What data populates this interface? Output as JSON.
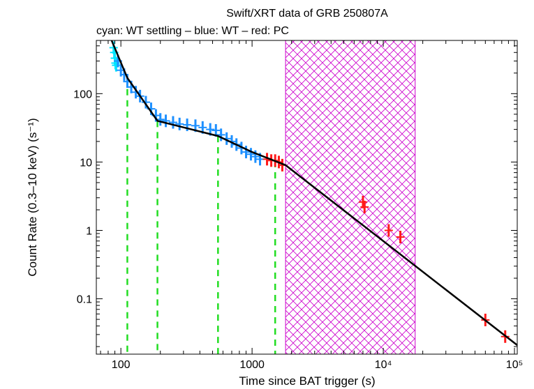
{
  "chart_data": {
    "type": "scatter",
    "title": "Swift/XRT data of GRB 250807A",
    "subtitle": "cyan: WT settling – blue: WT – red: PC",
    "xlabel": "Time since BAT trigger (s)",
    "ylabel": "Count Rate (0.3–10 keV) (s⁻¹)",
    "x_scale": "log",
    "y_scale": "log",
    "xlim": [
      65,
      105000
    ],
    "ylim": [
      0.0155,
      600
    ],
    "x_ticks": [
      {
        "value": 100,
        "label": "100"
      },
      {
        "value": 1000,
        "label": "1000"
      },
      {
        "value": 10000,
        "label": "10⁴"
      },
      {
        "value": 100000,
        "label": "10⁵"
      }
    ],
    "y_ticks": [
      {
        "value": 0.1,
        "label": "0.1"
      },
      {
        "value": 1,
        "label": "1"
      },
      {
        "value": 10,
        "label": "10"
      },
      {
        "value": 100,
        "label": "100"
      }
    ],
    "series": [
      {
        "name": "WT settling",
        "color": "#00e5ff",
        "points": [
          [
            88,
            470
          ],
          [
            89,
            400
          ],
          [
            90,
            330
          ],
          [
            91,
            280
          ],
          [
            92,
            260
          ]
        ]
      },
      {
        "name": "WT",
        "color": "#1e90ff",
        "points": [
          [
            95,
            300
          ],
          [
            100,
            220
          ],
          [
            106,
            190
          ],
          [
            112,
            150
          ],
          [
            120,
            125
          ],
          [
            130,
            105
          ],
          [
            140,
            92
          ],
          [
            155,
            75
          ],
          [
            170,
            60
          ],
          [
            185,
            48
          ],
          [
            200,
            42
          ],
          [
            220,
            40
          ],
          [
            250,
            38
          ],
          [
            280,
            36
          ],
          [
            320,
            35
          ],
          [
            370,
            34
          ],
          [
            420,
            32
          ],
          [
            480,
            30
          ],
          [
            530,
            29
          ],
          [
            580,
            25
          ],
          [
            640,
            22
          ],
          [
            700,
            20
          ],
          [
            760,
            18
          ],
          [
            830,
            16
          ],
          [
            900,
            14
          ],
          [
            980,
            13
          ],
          [
            1060,
            12
          ],
          [
            1150,
            11
          ]
        ]
      },
      {
        "name": "PC",
        "color": "#ff1a1a",
        "points": [
          [
            1300,
            11
          ],
          [
            1400,
            10.5
          ],
          [
            1500,
            10.5
          ],
          [
            1600,
            10
          ],
          [
            1700,
            9
          ],
          [
            7000,
            2.6
          ],
          [
            7200,
            2.2
          ],
          [
            11000,
            1.0
          ],
          [
            13500,
            0.8
          ],
          [
            60000,
            0.049
          ],
          [
            85000,
            0.028
          ]
        ]
      }
    ],
    "model": {
      "color": "#000000",
      "points": [
        [
          85,
          600
        ],
        [
          112,
          170
        ],
        [
          190,
          40
        ],
        [
          550,
          24
        ],
        [
          1000,
          14
        ],
        [
          1800,
          9
        ],
        [
          105000,
          0.021
        ]
      ]
    },
    "breaks": {
      "color": "#22dd22",
      "x": [
        112,
        190,
        550,
        1500
      ]
    },
    "excluded_interval": {
      "color": "#cc00cc",
      "x_start": 1800,
      "x_end": 17500
    }
  }
}
